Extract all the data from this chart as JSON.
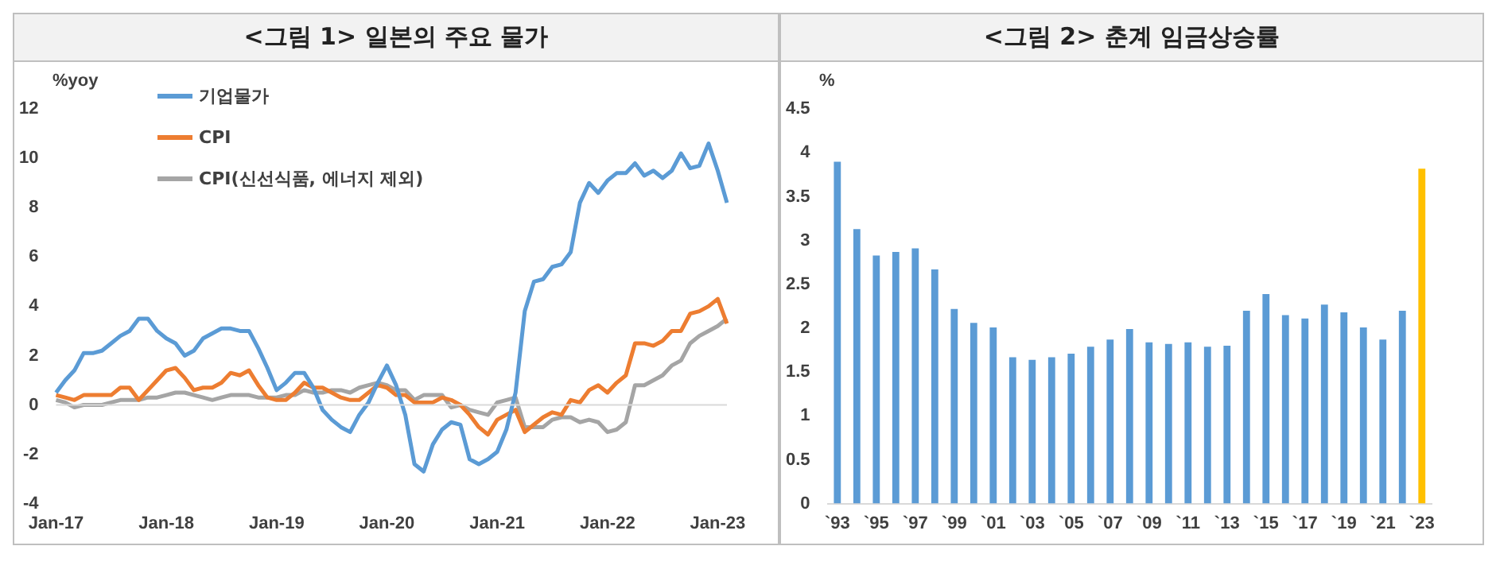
{
  "chart_data": [
    {
      "type": "line",
      "title": "<그림 1> 일본의 주요 물가",
      "ylabel": "%yoy",
      "ylim": [
        -4,
        12
      ],
      "yticks": [
        -4,
        -2,
        0,
        2,
        4,
        6,
        8,
        10,
        12
      ],
      "legend": "top left",
      "categories": [
        "Jan-17",
        null,
        null,
        null,
        null,
        null,
        null,
        null,
        null,
        null,
        null,
        null,
        "Jan-18",
        null,
        null,
        null,
        null,
        null,
        null,
        null,
        null,
        null,
        null,
        null,
        "Jan-19",
        null,
        null,
        null,
        null,
        null,
        null,
        null,
        null,
        null,
        null,
        null,
        "Jan-20",
        null,
        null,
        null,
        null,
        null,
        null,
        null,
        null,
        null,
        null,
        null,
        "Jan-21",
        null,
        null,
        null,
        null,
        null,
        null,
        null,
        null,
        null,
        null,
        null,
        "Jan-22",
        null,
        null,
        null,
        null,
        null,
        null,
        null,
        null,
        null,
        null,
        null,
        "Jan-23",
        null
      ],
      "series": [
        {
          "name": "기업물가",
          "color": "#5b9bd5",
          "values": [
            0.5,
            1.0,
            1.4,
            2.1,
            2.1,
            2.2,
            2.5,
            2.8,
            3.0,
            3.5,
            3.5,
            3.0,
            2.7,
            2.5,
            2.0,
            2.2,
            2.7,
            2.9,
            3.1,
            3.1,
            3.0,
            3.0,
            2.3,
            1.5,
            0.6,
            0.9,
            1.3,
            1.3,
            0.7,
            -0.2,
            -0.6,
            -0.9,
            -1.1,
            -0.4,
            0.1,
            0.9,
            1.6,
            0.8,
            -0.4,
            -2.4,
            -2.7,
            -1.6,
            -1.0,
            -0.7,
            -0.8,
            -2.2,
            -2.4,
            -2.2,
            -1.9,
            -1.0,
            0.5,
            3.8,
            5.0,
            5.1,
            5.6,
            5.7,
            6.2,
            8.2,
            9.0,
            8.6,
            9.1,
            9.4,
            9.4,
            9.8,
            9.3,
            9.5,
            9.2,
            9.5,
            10.2,
            9.6,
            9.7,
            10.6,
            9.5,
            8.2
          ]
        },
        {
          "name": "CPI",
          "color": "#ed7d31",
          "values": [
            0.4,
            0.3,
            0.2,
            0.4,
            0.4,
            0.4,
            0.4,
            0.7,
            0.7,
            0.2,
            0.6,
            1.0,
            1.4,
            1.5,
            1.1,
            0.6,
            0.7,
            0.7,
            0.9,
            1.3,
            1.2,
            1.4,
            0.8,
            0.3,
            0.2,
            0.2,
            0.5,
            0.9,
            0.7,
            0.7,
            0.5,
            0.3,
            0.2,
            0.2,
            0.5,
            0.8,
            0.7,
            0.4,
            0.4,
            0.1,
            0.1,
            0.1,
            0.3,
            0.2,
            0.0,
            -0.4,
            -0.9,
            -1.2,
            -0.6,
            -0.4,
            -0.2,
            -1.1,
            -0.8,
            -0.5,
            -0.3,
            -0.4,
            0.2,
            0.1,
            0.6,
            0.8,
            0.5,
            0.9,
            1.2,
            2.5,
            2.5,
            2.4,
            2.6,
            3.0,
            3.0,
            3.7,
            3.8,
            4.0,
            4.3,
            3.3
          ]
        },
        {
          "name": "CPI(신선식품, 에너지 제외)",
          "color": "#a5a5a5",
          "values": [
            0.2,
            0.1,
            -0.1,
            0.0,
            0.0,
            0.0,
            0.1,
            0.2,
            0.2,
            0.2,
            0.3,
            0.3,
            0.4,
            0.5,
            0.5,
            0.4,
            0.3,
            0.2,
            0.3,
            0.4,
            0.4,
            0.4,
            0.3,
            0.3,
            0.3,
            0.4,
            0.4,
            0.6,
            0.5,
            0.5,
            0.6,
            0.6,
            0.5,
            0.7,
            0.8,
            0.9,
            0.8,
            0.6,
            0.6,
            0.2,
            0.4,
            0.4,
            0.4,
            -0.1,
            0.0,
            -0.2,
            -0.3,
            -0.4,
            0.1,
            0.2,
            0.3,
            -0.9,
            -0.9,
            -0.9,
            -0.6,
            -0.5,
            -0.5,
            -0.7,
            -0.6,
            -0.7,
            -1.1,
            -1.0,
            -0.7,
            0.8,
            0.8,
            1.0,
            1.2,
            1.6,
            1.8,
            2.5,
            2.8,
            3.0,
            3.2,
            3.5
          ]
        }
      ]
    },
    {
      "type": "bar",
      "title": "<그림 2> 춘계 임금상승률",
      "ylabel": "%",
      "ylim": [
        0,
        4.5
      ],
      "yticks": [
        0,
        0.5,
        1,
        1.5,
        2,
        2.5,
        3,
        3.5,
        4,
        4.5
      ],
      "categories": [
        "`93",
        null,
        "`95",
        null,
        "`97",
        null,
        "`99",
        null,
        "`01",
        null,
        "`03",
        null,
        "`05",
        null,
        "`07",
        null,
        "`09",
        null,
        "`11",
        null,
        "`13",
        null,
        "`15",
        null,
        "`17",
        null,
        "`19",
        null,
        "`21",
        null,
        "`23"
      ],
      "values": [
        3.9,
        3.13,
        2.83,
        2.87,
        2.91,
        2.67,
        2.22,
        2.06,
        2.01,
        1.67,
        1.64,
        1.67,
        1.71,
        1.79,
        1.87,
        1.99,
        1.84,
        1.82,
        1.84,
        1.79,
        1.8,
        2.2,
        2.39,
        2.15,
        2.11,
        2.27,
        2.18,
        2.01,
        1.87,
        2.2,
        3.82
      ],
      "colors": [
        "#5b9bd5",
        "#5b9bd5",
        "#5b9bd5",
        "#5b9bd5",
        "#5b9bd5",
        "#5b9bd5",
        "#5b9bd5",
        "#5b9bd5",
        "#5b9bd5",
        "#5b9bd5",
        "#5b9bd5",
        "#5b9bd5",
        "#5b9bd5",
        "#5b9bd5",
        "#5b9bd5",
        "#5b9bd5",
        "#5b9bd5",
        "#5b9bd5",
        "#5b9bd5",
        "#5b9bd5",
        "#5b9bd5",
        "#5b9bd5",
        "#5b9bd5",
        "#5b9bd5",
        "#5b9bd5",
        "#5b9bd5",
        "#5b9bd5",
        "#5b9bd5",
        "#5b9bd5",
        "#5b9bd5",
        "#ffc000"
      ]
    }
  ]
}
